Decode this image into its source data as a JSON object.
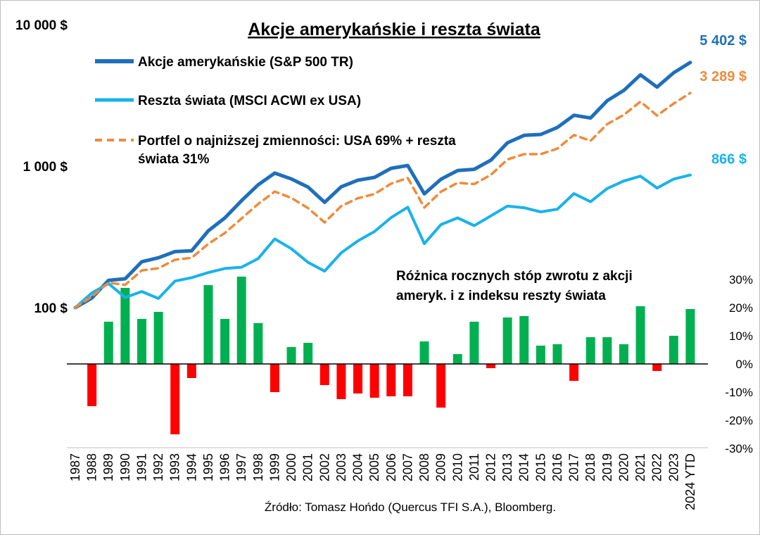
{
  "chart_data": {
    "type": "line",
    "title": "Akcje amerykańskie i reszta świata",
    "categories": [
      "1987",
      "1988",
      "1989",
      "1990",
      "1991",
      "1992",
      "1993",
      "1994",
      "1995",
      "1996",
      "1997",
      "1998",
      "1999",
      "2000",
      "2001",
      "2002",
      "2003",
      "2004",
      "2005",
      "2006",
      "2007",
      "2008",
      "2009",
      "2010",
      "2011",
      "2012",
      "2013",
      "2014",
      "2015",
      "2016",
      "2017",
      "2018",
      "2019",
      "2020",
      "2021",
      "2022",
      "2023",
      "2024 YTD"
    ],
    "left_axis": {
      "scale": "log",
      "range": [
        100,
        10000
      ],
      "ticks": [
        "100 $",
        "1 000  $",
        "10 000 $"
      ]
    },
    "series": [
      {
        "name": "Akcje amerykańskie (S&P 500 TR)",
        "color": "#1f6fba",
        "style": "solid",
        "values": [
          100,
          117,
          156,
          160,
          211,
          225,
          249,
          252,
          349,
          431,
          570,
          737,
          893,
          812,
          712,
          555,
          715,
          795,
          833,
          965,
          1010,
          637,
          808,
          930,
          950,
          1101,
          1461,
          1649,
          1675,
          1875,
          2290,
          2190,
          2900,
          3430,
          4420,
          3620,
          4570,
          5402
        ],
        "end_label": "5 402 $"
      },
      {
        "name": "Reszta świata (MSCI ACWI ex USA)",
        "color": "#19b2ea",
        "style": "solid",
        "values": [
          100,
          127,
          148,
          118,
          130,
          116,
          154,
          163,
          177,
          189,
          193,
          222,
          306,
          261,
          209,
          181,
          244,
          296,
          345,
          433,
          512,
          283,
          386,
          431,
          380,
          445,
          522,
          508,
          475,
          496,
          640,
          560,
          695,
          785,
          850,
          700,
          810,
          866
        ],
        "end_label": "866 $"
      },
      {
        "name": "Portfel o najniższej zmienności: USA 69% + reszta świata 31%",
        "color": "#ef8a3c",
        "style": "dashed",
        "values": [
          100,
          120,
          150,
          145,
          183,
          190,
          218,
          225,
          282,
          337,
          426,
          540,
          661,
          596,
          505,
          400,
          522,
          593,
          635,
          752,
          825,
          510,
          660,
          762,
          747,
          868,
          1115,
          1215,
          1215,
          1330,
          1660,
          1510,
          1980,
          2305,
          2855,
          2280,
          2770,
          3289
        ],
        "end_label": "3 289 $"
      }
    ],
    "bar_series": {
      "name": "Różnica rocznych stóp zwrotu z akcji ameryk. i z indeksu reszty świata",
      "positive_color": "#00b050",
      "negative_color": "#ff0000",
      "right_axis": {
        "range": [
          -30,
          30
        ],
        "ticks": [
          "-30%",
          "-20%",
          "-10%",
          "0%",
          "10%",
          "20%",
          "30%"
        ]
      },
      "values": [
        null,
        -15,
        15,
        27,
        16,
        18.5,
        -25,
        -5,
        28,
        16,
        31,
        14.5,
        -10,
        6,
        7.5,
        -7.5,
        -12.5,
        -10.5,
        -12,
        -11.5,
        -11.5,
        8,
        -15.5,
        3.5,
        15,
        -1.5,
        16.5,
        17,
        6.5,
        7,
        -6,
        9.5,
        9.5,
        7,
        20.5,
        -2.5,
        10,
        19.5
      ]
    },
    "annotation_lines": [
      "Różnica rocznych stóp zwrotu z akcji",
      "ameryk. i z indeksu reszty świata"
    ],
    "source": "Źródło: Tomasz Hońdo (Quercus TFI S.A.), Bloomberg."
  }
}
